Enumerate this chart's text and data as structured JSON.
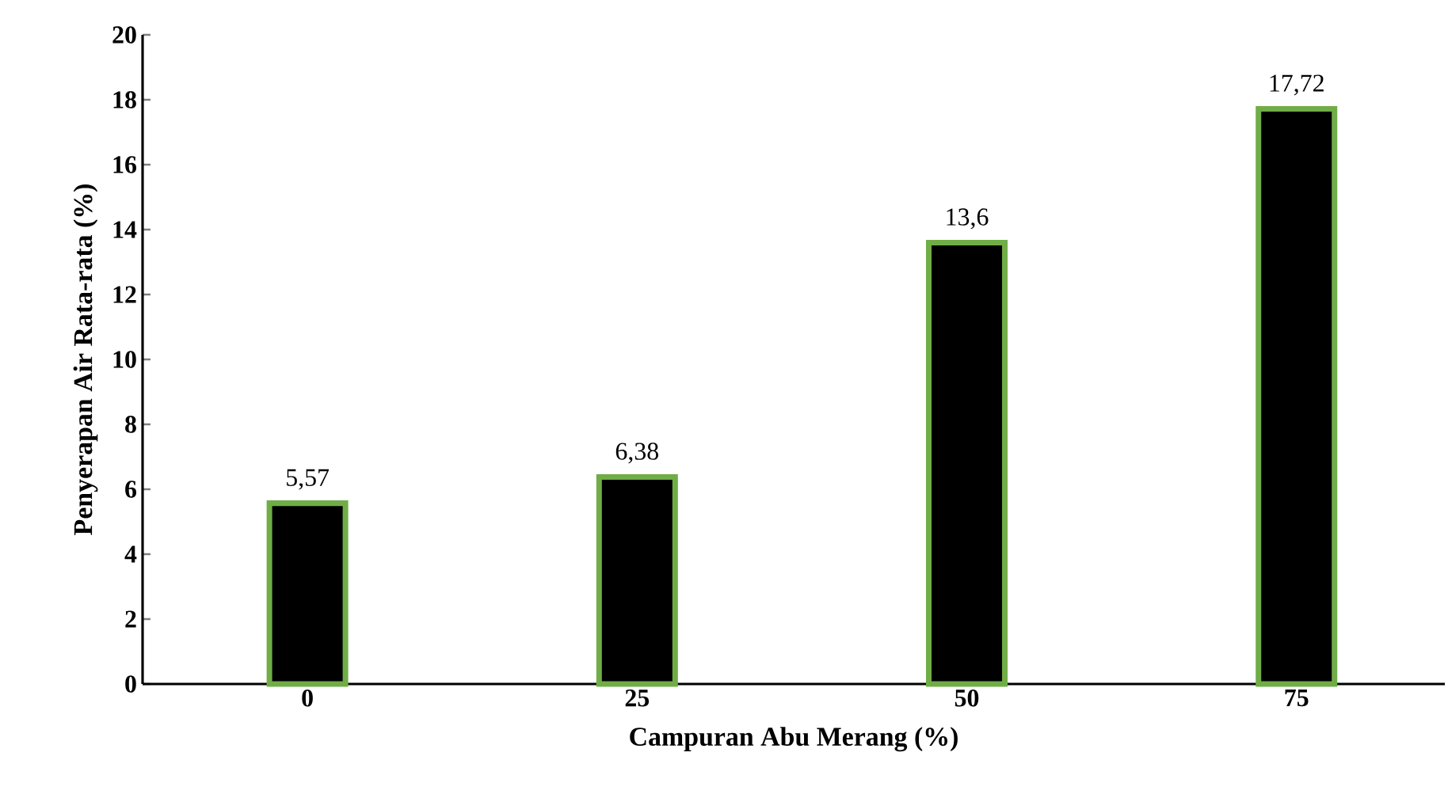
{
  "chart_data": {
    "type": "bar",
    "xlabel": "Campuran Abu Merang (%)",
    "ylabel": "Penyerapan Air Rata-rata (%)",
    "categories": [
      "0",
      "25",
      "50",
      "75"
    ],
    "values": [
      5.57,
      6.38,
      13.6,
      17.72
    ],
    "value_labels": [
      "5,57",
      "6,38",
      "13,6",
      "17,72"
    ],
    "color": "#000000",
    "ylim": [
      0,
      20
    ],
    "yticks": [
      0,
      2,
      4,
      6,
      8,
      10,
      12,
      14,
      16,
      18,
      20
    ],
    "grid": false
  }
}
